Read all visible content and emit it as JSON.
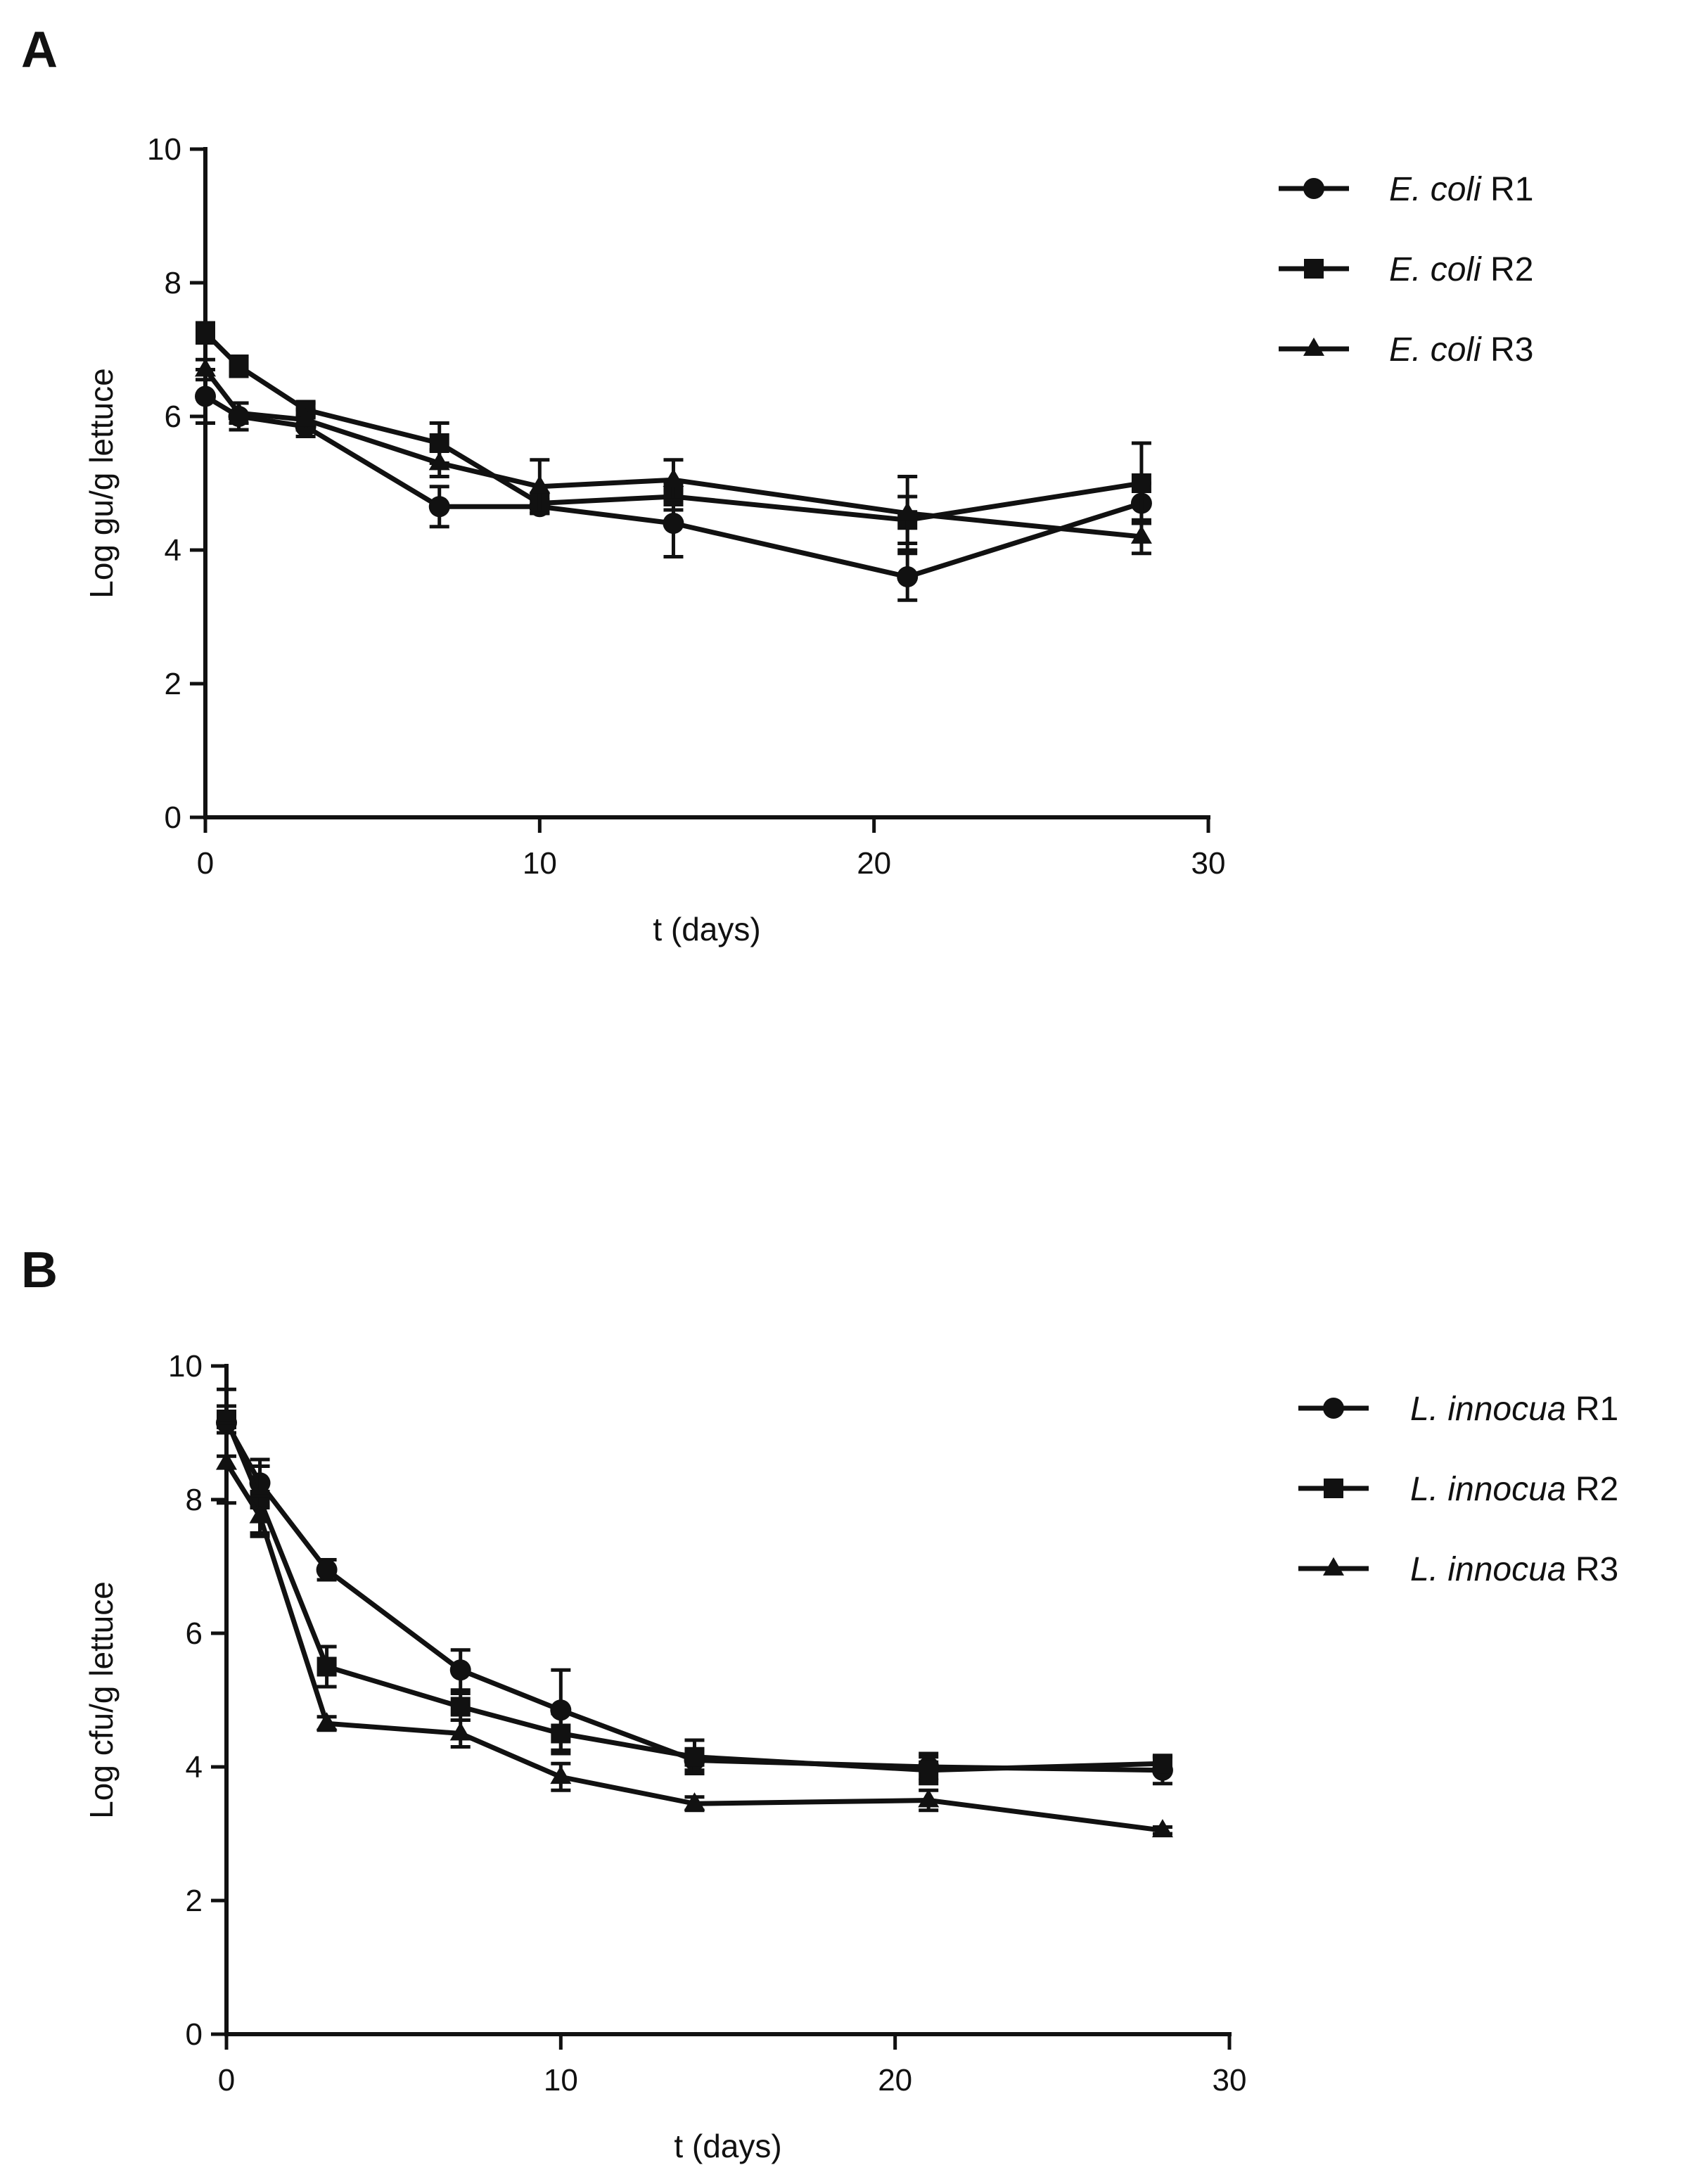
{
  "chart_data": [
    {
      "type": "line",
      "panel_label": "A",
      "xlabel": "t (days)",
      "ylabel": "Log gu/g lettuce",
      "xlim": [
        0,
        30
      ],
      "ylim": [
        0,
        10
      ],
      "xticks": [
        0,
        10,
        20,
        30
      ],
      "yticks": [
        0,
        2,
        4,
        6,
        8,
        10
      ],
      "legend_position": "right",
      "x": [
        0,
        1,
        3,
        7,
        10,
        14,
        21,
        28
      ],
      "series": [
        {
          "name": "E. coli R1",
          "name_italic": "E. coli",
          "name_rest": " R1",
          "marker": "circle",
          "values": [
            6.3,
            6.0,
            5.85,
            4.65,
            4.65,
            4.4,
            3.6,
            4.7
          ],
          "errors": [
            0.4,
            0.2,
            0.15,
            0.3,
            0.1,
            0.5,
            0.35,
            0.3
          ]
        },
        {
          "name": "E. coli R2",
          "name_italic": "E. coli",
          "name_rest": " R2",
          "marker": "square",
          "values": [
            7.25,
            6.75,
            6.1,
            5.6,
            4.7,
            4.8,
            4.45,
            5.0
          ],
          "errors": [
            0.15,
            0.15,
            0.1,
            0.3,
            0.15,
            0.2,
            0.35,
            0.6
          ]
        },
        {
          "name": "E. coli R3",
          "name_italic": "E. coli",
          "name_rest": " R3",
          "marker": "triangle",
          "values": [
            6.7,
            6.05,
            5.95,
            5.3,
            4.95,
            5.05,
            4.55,
            4.2
          ],
          "errors": [
            0.15,
            0.15,
            0.15,
            0.2,
            0.4,
            0.3,
            0.55,
            0.25
          ]
        }
      ]
    },
    {
      "type": "line",
      "panel_label": "B",
      "xlabel": "t (days)",
      "ylabel": "Log cfu/g lettuce",
      "xlim": [
        0,
        30
      ],
      "ylim": [
        0,
        10
      ],
      "xticks": [
        0,
        10,
        20,
        30
      ],
      "yticks": [
        0,
        2,
        4,
        6,
        8,
        10
      ],
      "legend_position": "right",
      "x": [
        0,
        1,
        3,
        7,
        10,
        14,
        21,
        28
      ],
      "series": [
        {
          "name": "L. innocua R1",
          "name_italic": "L. innocua",
          "name_rest": " R1",
          "marker": "circle",
          "values": [
            9.15,
            8.25,
            6.95,
            5.45,
            4.85,
            4.1,
            4.0,
            3.95
          ],
          "errors": [
            0.5,
            0.35,
            0.15,
            0.3,
            0.6,
            0.15,
            0.2,
            0.2
          ]
        },
        {
          "name": "L. innocua R2",
          "name_italic": "L. innocua",
          "name_rest": " R2",
          "marker": "square",
          "values": [
            9.2,
            8.0,
            5.5,
            4.9,
            4.5,
            4.15,
            3.95,
            4.05
          ],
          "errors": [
            0.2,
            0.5,
            0.3,
            0.2,
            0.3,
            0.25,
            0.2,
            0.1
          ]
        },
        {
          "name": "L. innocua R3",
          "name_italic": "L. innocua",
          "name_rest": " R3",
          "marker": "triangle",
          "values": [
            8.55,
            7.75,
            4.65,
            4.5,
            3.85,
            3.45,
            3.5,
            3.05
          ],
          "errors": [
            0.6,
            0.3,
            0.1,
            0.2,
            0.2,
            0.1,
            0.15,
            0.05
          ]
        }
      ]
    }
  ]
}
